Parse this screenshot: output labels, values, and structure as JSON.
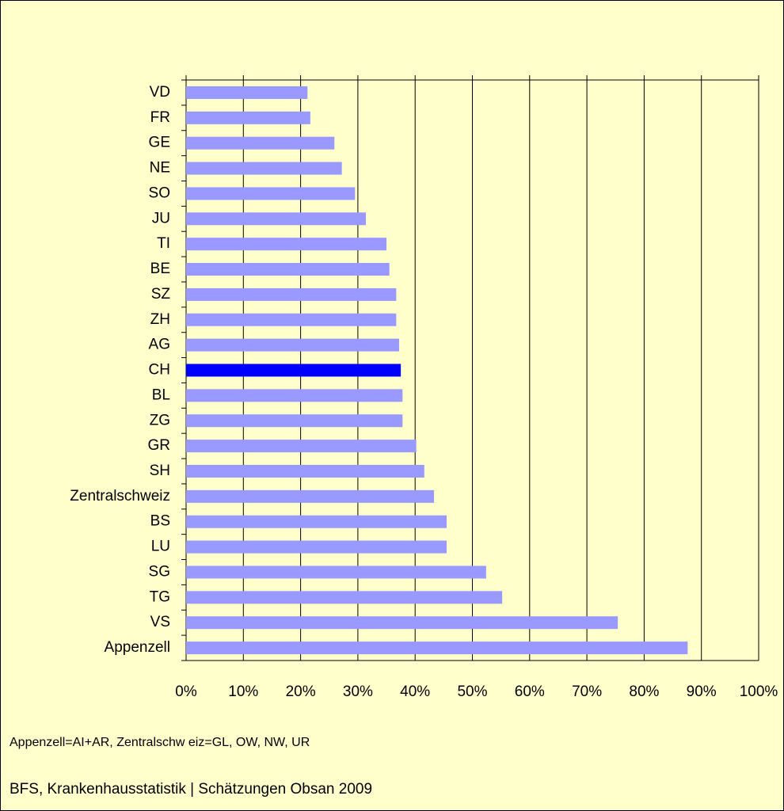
{
  "chart_data": {
    "type": "barh",
    "categories": [
      "VD",
      "FR",
      "GE",
      "NE",
      "SO",
      "JU",
      "TI",
      "BE",
      "SZ",
      "ZH",
      "AG",
      "CH",
      "BL",
      "ZG",
      "GR",
      "SH",
      "Zentralschweiz",
      "BS",
      "LU",
      "SG",
      "TG",
      "VS",
      "Appenzell"
    ],
    "values": [
      21.2,
      21.7,
      25.9,
      27.2,
      29.5,
      31.4,
      35.0,
      35.5,
      36.7,
      36.7,
      37.2,
      37.5,
      37.8,
      37.8,
      40.2,
      41.6,
      43.3,
      45.5,
      45.5,
      52.4,
      55.2,
      75.4,
      87.6
    ],
    "colors": [
      "#9999ff",
      "#9999ff",
      "#9999ff",
      "#9999ff",
      "#9999ff",
      "#9999ff",
      "#9999ff",
      "#9999ff",
      "#9999ff",
      "#9999ff",
      "#9999ff",
      "#0000ff",
      "#9999ff",
      "#9999ff",
      "#9999ff",
      "#9999ff",
      "#9999ff",
      "#9999ff",
      "#9999ff",
      "#9999ff",
      "#9999ff",
      "#9999ff",
      "#9999ff"
    ],
    "xlim": [
      0,
      100
    ],
    "xticks": [
      {
        "value": 0,
        "label": "0%"
      },
      {
        "value": 10,
        "label": "10%"
      },
      {
        "value": 20,
        "label": "20%"
      },
      {
        "value": 30,
        "label": "30%"
      },
      {
        "value": 40,
        "label": "40%"
      },
      {
        "value": 50,
        "label": "50%"
      },
      {
        "value": 60,
        "label": "60%"
      },
      {
        "value": 70,
        "label": "70%"
      },
      {
        "value": 80,
        "label": "80%"
      },
      {
        "value": 90,
        "label": "90%"
      },
      {
        "value": 100,
        "label": "100%"
      }
    ],
    "grid": true,
    "annotations": [
      "Appenzell=AI+AR, Zentralschw eiz=GL, OW, NW, UR",
      "BFS, Krankenhausstatistik | Schätzungen Obsan 2009"
    ]
  }
}
